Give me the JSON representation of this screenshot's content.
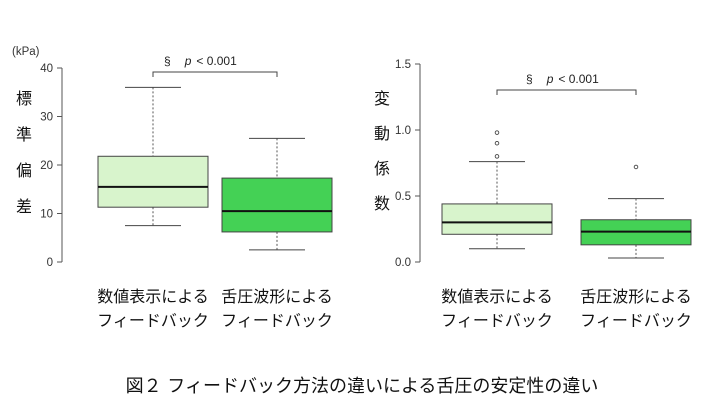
{
  "caption": "図２ フィードバック方法の違いによる舌圧の安定性の違い",
  "colors": {
    "box_light": "#d8f4cc",
    "box_dark": "#44d155",
    "axis": "#555555",
    "median": "#111111"
  },
  "chart_data": [
    {
      "type": "boxplot",
      "unit_label": "(kPa)",
      "ylabel": [
        "標",
        "準",
        "偏",
        "差"
      ],
      "ylim": [
        0,
        40
      ],
      "yticks": [
        "0",
        "10",
        "20",
        "30",
        "40"
      ],
      "ytick_values": [
        0,
        10,
        20,
        30,
        40
      ],
      "significance": {
        "symbol": "§",
        "p_italic": "p",
        "p_text": "< 0.001"
      },
      "categories": [
        {
          "line1": "数値表示による",
          "line2": "フィードバック"
        },
        {
          "line1": "舌圧波形による",
          "line2": "フィードバック"
        }
      ],
      "boxes": [
        {
          "whisker_low": 7.5,
          "q1": 11.3,
          "median": 15.5,
          "q3": 21.8,
          "whisker_high": 36,
          "outliers": [],
          "color": "light"
        },
        {
          "whisker_low": 2.5,
          "q1": 6.2,
          "median": 10.5,
          "q3": 17.3,
          "whisker_high": 25.5,
          "outliers": [],
          "color": "dark"
        }
      ]
    },
    {
      "type": "boxplot",
      "unit_label": "",
      "ylabel": [
        "変",
        "動",
        "係",
        "数"
      ],
      "ylim": [
        0,
        1.5
      ],
      "yticks": [
        "0.0",
        "0.5",
        "1.0",
        "1.5"
      ],
      "ytick_values": [
        0,
        0.5,
        1.0,
        1.5
      ],
      "significance": {
        "symbol": "§",
        "p_italic": "p",
        "p_text": "< 0.001"
      },
      "categories": [
        {
          "line1": "数値表示による",
          "line2": "フィードバック"
        },
        {
          "line1": "舌圧波形による",
          "line2": "フィードバック"
        }
      ],
      "boxes": [
        {
          "whisker_low": 0.1,
          "q1": 0.21,
          "median": 0.3,
          "q3": 0.44,
          "whisker_high": 0.76,
          "outliers": [
            0.8,
            0.9,
            0.98
          ],
          "color": "light"
        },
        {
          "whisker_low": 0.03,
          "q1": 0.13,
          "median": 0.23,
          "q3": 0.32,
          "whisker_high": 0.48,
          "outliers": [
            0.72
          ],
          "color": "dark"
        }
      ]
    }
  ]
}
